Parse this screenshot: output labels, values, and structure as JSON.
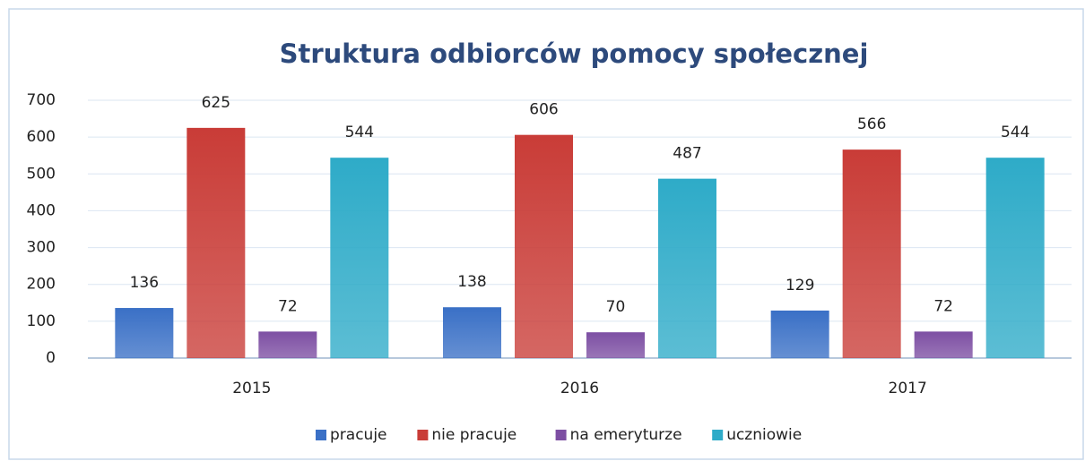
{
  "chart_data": {
    "type": "bar",
    "title": "Struktura odbiorców pomocy społecznej",
    "categories": [
      "2015",
      "2016",
      "2017"
    ],
    "series": [
      {
        "name": "pracuje",
        "color": "#3a70c6",
        "values": [
          136,
          138,
          129
        ]
      },
      {
        "name": "nie pracuje",
        "color": "#c93c37",
        "values": [
          625,
          606,
          566
        ]
      },
      {
        "name": "na emeryturze",
        "color": "#7d4fa3",
        "values": [
          72,
          70,
          72
        ]
      },
      {
        "name": "uczniowie",
        "color": "#2eabc8",
        "values": [
          544,
          487,
          544
        ]
      }
    ],
    "ylim": [
      0,
      700
    ],
    "yticks": [
      0,
      100,
      200,
      300,
      400,
      500,
      600,
      700
    ],
    "grid": true,
    "legend": "bottom"
  }
}
